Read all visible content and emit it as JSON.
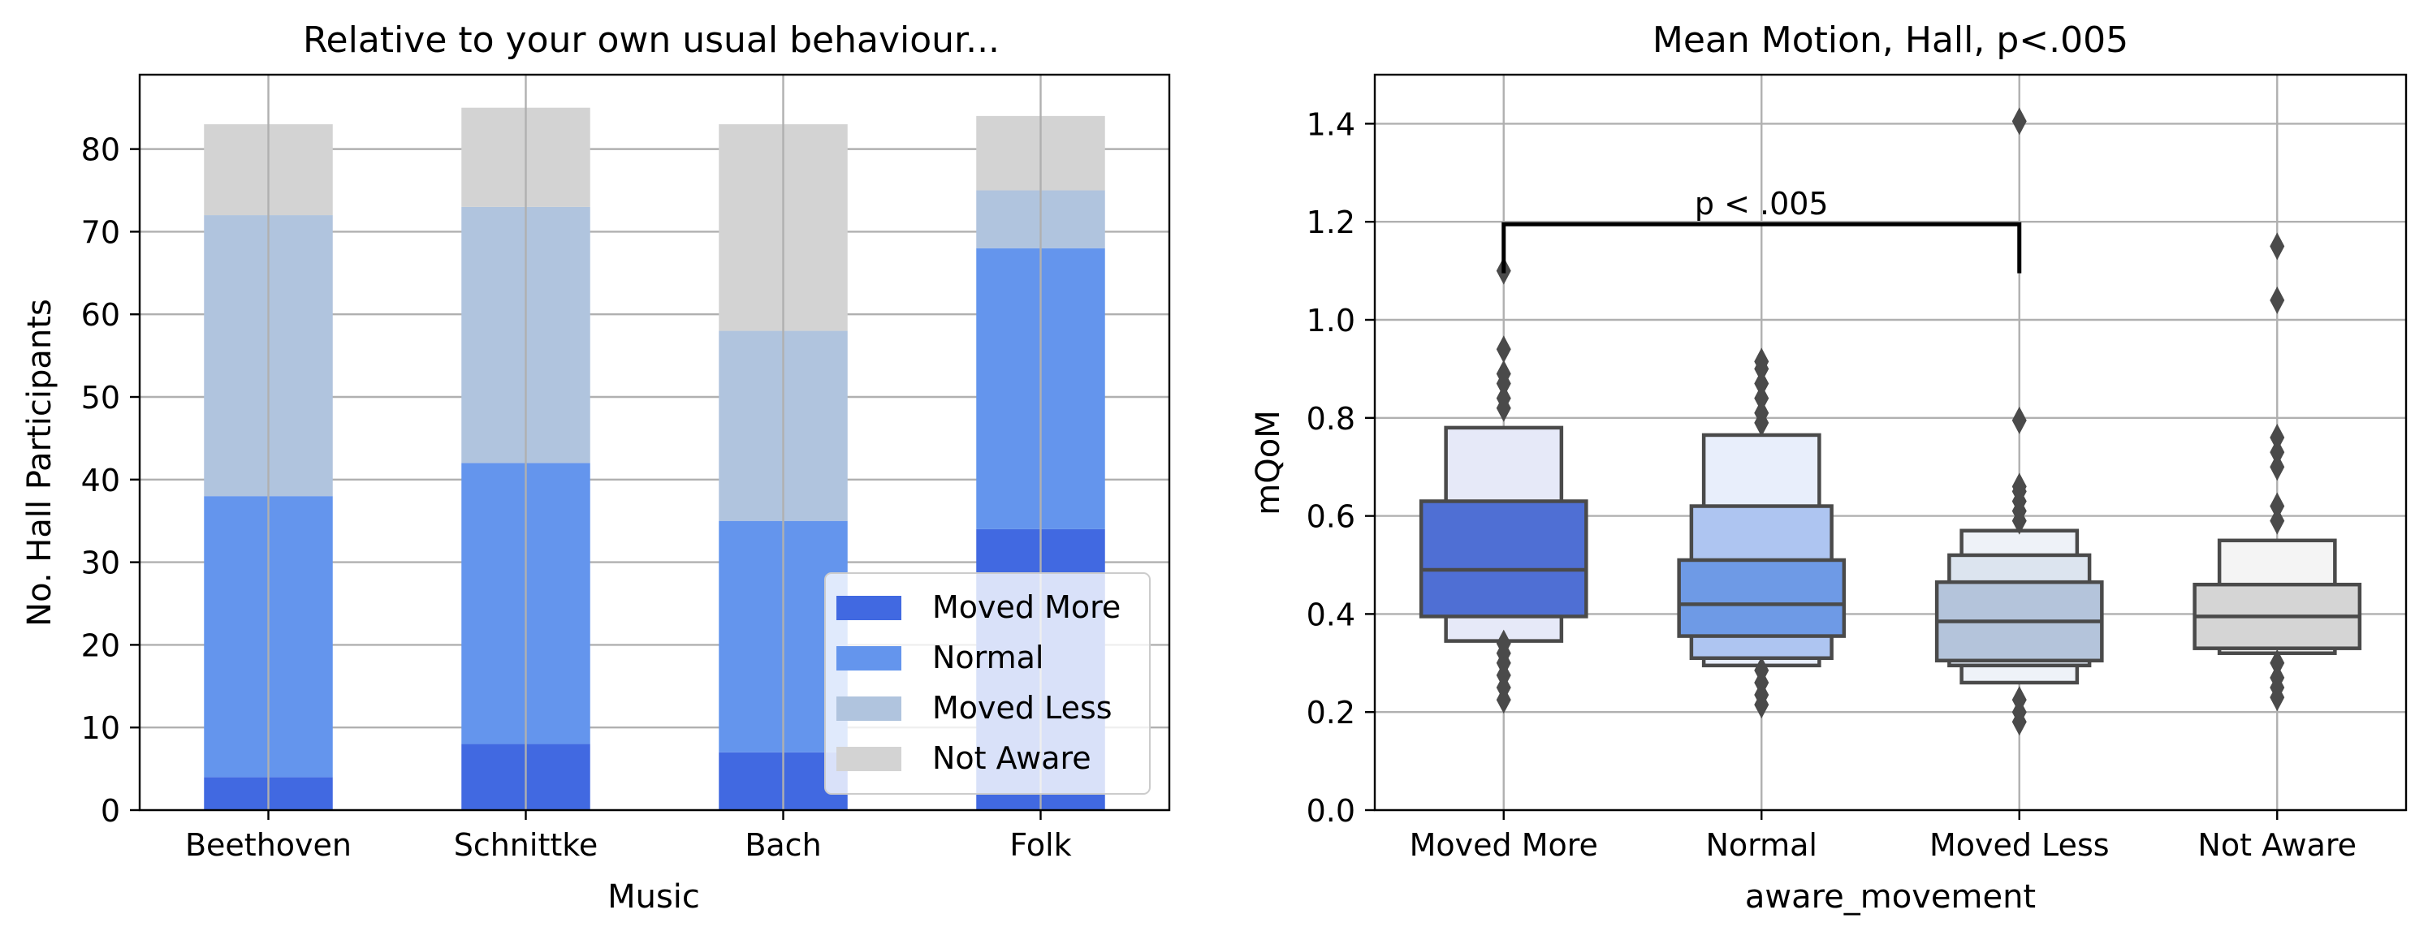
{
  "chart_data": [
    {
      "type": "bar",
      "stacked": true,
      "title": "Relative to your own usual behaviour...",
      "xlabel": "Music",
      "ylabel": "No. Hall Participants",
      "categories": [
        "Beethoven",
        "Schnittke",
        "Bach",
        "Folk"
      ],
      "ylim": [
        0,
        89
      ],
      "yticks": [
        0,
        10,
        20,
        30,
        40,
        50,
        60,
        70,
        80
      ],
      "grid": true,
      "legend_position": "lower-right",
      "series": [
        {
          "name": "Moved More",
          "color": "#4169e1",
          "values": [
            4,
            8,
            7,
            34
          ]
        },
        {
          "name": "Normal",
          "color": "#6495ed",
          "values": [
            34,
            34,
            28,
            34
          ]
        },
        {
          "name": "Moved Less",
          "color": "#b0c4de",
          "values": [
            34,
            31,
            23,
            7
          ]
        },
        {
          "name": "Not Aware",
          "color": "#d3d3d3",
          "values": [
            11,
            12,
            25,
            9
          ]
        }
      ]
    },
    {
      "type": "boxen",
      "title": "Mean Motion, Hall, p<.005",
      "xlabel": "aware_movement",
      "ylabel": "mQoM",
      "categories": [
        "Moved More",
        "Normal",
        "Moved Less",
        "Not Aware"
      ],
      "ylim": [
        0,
        1.5
      ],
      "yticks": [
        "0.0",
        "0.2",
        "0.4",
        "0.6",
        "0.8",
        "1.0",
        "1.2",
        "1.4"
      ],
      "grid": true,
      "groups": [
        {
          "name": "Moved More",
          "median": 0.49,
          "boxes": [
            {
              "low": 0.345,
              "high": 0.78,
              "color": "#e6e9f8"
            },
            {
              "low": 0.395,
              "high": 0.63,
              "color": "#4f6fd4"
            }
          ],
          "outliers": [
            0.225,
            0.25,
            0.275,
            0.3,
            0.32,
            0.34,
            0.82,
            0.84,
            0.87,
            0.89,
            0.94,
            1.1
          ]
        },
        {
          "name": "Normal",
          "median": 0.42,
          "boxes": [
            {
              "low": 0.295,
              "high": 0.765,
              "color": "#e8eefb"
            },
            {
              "low": 0.31,
              "high": 0.62,
              "color": "#aec5f1"
            },
            {
              "low": 0.355,
              "high": 0.51,
              "color": "#6e9ae6"
            }
          ],
          "outliers": [
            0.215,
            0.235,
            0.26,
            0.285,
            0.79,
            0.81,
            0.84,
            0.87,
            0.9,
            0.915
          ]
        },
        {
          "name": "Moved Less",
          "median": 0.385,
          "boxes": [
            {
              "low": 0.26,
              "high": 0.57,
              "color": "#eef2f8"
            },
            {
              "low": 0.295,
              "high": 0.52,
              "color": "#dce4ef"
            },
            {
              "low": 0.305,
              "high": 0.465,
              "color": "#b4c4db"
            }
          ],
          "outliers": [
            0.18,
            0.2,
            0.225,
            0.59,
            0.61,
            0.63,
            0.65,
            0.66,
            0.795,
            1.405
          ]
        },
        {
          "name": "Not Aware",
          "median": 0.395,
          "boxes": [
            {
              "low": 0.32,
              "high": 0.55,
              "color": "#f4f4f4"
            },
            {
              "low": 0.33,
              "high": 0.46,
              "color": "#d5d5d5"
            }
          ],
          "outliers": [
            0.23,
            0.25,
            0.27,
            0.3,
            0.59,
            0.62,
            0.7,
            0.73,
            0.76,
            1.04,
            1.15
          ]
        }
      ],
      "annotation": {
        "text": "p < .005",
        "between": [
          "Moved More",
          "Moved Less"
        ],
        "y": 1.195,
        "tick_bottom": 1.095
      }
    }
  ]
}
